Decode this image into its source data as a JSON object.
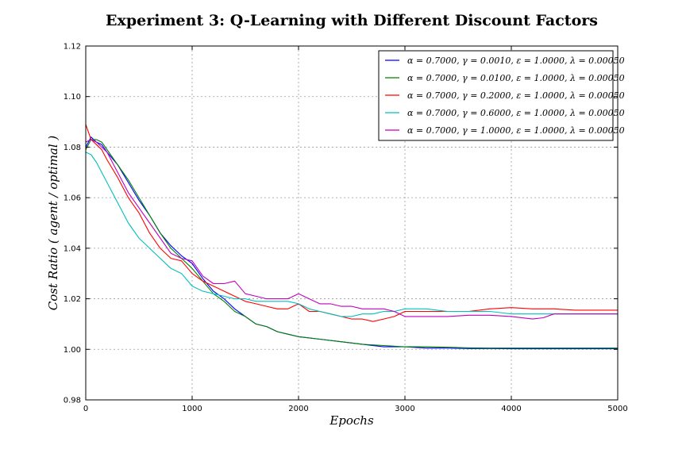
{
  "chart_data": {
    "type": "line",
    "title": "Experiment 3: Q-Learning with Different Discount Factors",
    "xlabel": "Epochs",
    "ylabel": "Cost Ratio ( agent / optimal )",
    "xlim": [
      0,
      5000
    ],
    "ylim": [
      0.98,
      1.12
    ],
    "xticks": [
      "0",
      "1000",
      "2000",
      "3000",
      "4000",
      "5000"
    ],
    "yticks": [
      "0.98",
      "1.00",
      "1.02",
      "1.04",
      "1.06",
      "1.08",
      "1.10",
      "1.12"
    ],
    "grid": true,
    "legend_position": "top-right",
    "series": [
      {
        "name": "α = 0.7000, γ = 0.0010, ε = 1.0000, λ = 0.00050",
        "color": "#0000ff",
        "x": [
          0,
          50,
          100,
          150,
          200,
          300,
          400,
          500,
          600,
          700,
          800,
          900,
          1000,
          1100,
          1200,
          1300,
          1400,
          1500,
          1600,
          1700,
          1800,
          1900,
          2000,
          2200,
          2400,
          2600,
          2800,
          3000,
          3200,
          3400,
          3600,
          3800,
          4000,
          4500,
          5000
        ],
        "y": [
          1.08,
          1.084,
          1.082,
          1.081,
          1.078,
          1.073,
          1.066,
          1.059,
          1.053,
          1.046,
          1.041,
          1.037,
          1.034,
          1.028,
          1.023,
          1.02,
          1.016,
          1.013,
          1.01,
          1.009,
          1.007,
          1.006,
          1.005,
          1.004,
          1.003,
          1.002,
          1.001,
          1.001,
          1.0005,
          1.0005,
          1.0003,
          1.0003,
          1.0002,
          1.0002,
          1.0002
        ]
      },
      {
        "name": "α = 0.7000, γ = 0.0100, ε = 1.0000, λ = 0.00050",
        "color": "#008000",
        "x": [
          0,
          50,
          100,
          150,
          200,
          300,
          400,
          500,
          600,
          700,
          800,
          900,
          1000,
          1100,
          1200,
          1300,
          1400,
          1500,
          1600,
          1700,
          1800,
          1900,
          2000,
          2200,
          2400,
          2600,
          2800,
          3000,
          3200,
          3400,
          3600,
          3800,
          4000,
          4500,
          5000
        ],
        "y": [
          1.079,
          1.083,
          1.083,
          1.082,
          1.079,
          1.073,
          1.067,
          1.06,
          1.053,
          1.046,
          1.04,
          1.036,
          1.032,
          1.027,
          1.022,
          1.019,
          1.015,
          1.013,
          1.01,
          1.009,
          1.007,
          1.006,
          1.005,
          1.004,
          1.003,
          1.002,
          1.0015,
          1.001,
          1.001,
          1.0008,
          1.0006,
          1.0005,
          1.0005,
          1.0005,
          1.0005
        ]
      },
      {
        "name": "α = 0.7000, γ = 0.2000, ε = 1.0000, λ = 0.00050",
        "color": "#ff0000",
        "x": [
          0,
          50,
          100,
          150,
          200,
          300,
          400,
          500,
          600,
          700,
          800,
          900,
          1000,
          1100,
          1200,
          1300,
          1400,
          1500,
          1600,
          1700,
          1800,
          1900,
          2000,
          2100,
          2200,
          2300,
          2400,
          2500,
          2600,
          2700,
          2800,
          2900,
          3000,
          3200,
          3400,
          3600,
          3800,
          4000,
          4200,
          4400,
          4600,
          4800,
          5000
        ],
        "y": [
          1.089,
          1.083,
          1.081,
          1.079,
          1.075,
          1.068,
          1.06,
          1.054,
          1.046,
          1.04,
          1.036,
          1.035,
          1.03,
          1.027,
          1.025,
          1.023,
          1.021,
          1.019,
          1.018,
          1.017,
          1.016,
          1.016,
          1.018,
          1.015,
          1.015,
          1.014,
          1.013,
          1.012,
          1.012,
          1.011,
          1.012,
          1.013,
          1.015,
          1.015,
          1.015,
          1.015,
          1.016,
          1.0165,
          1.016,
          1.016,
          1.0155,
          1.0155,
          1.0155
        ]
      },
      {
        "name": "α = 0.7000, γ = 0.6000, ε = 1.0000, λ = 0.00050",
        "color": "#00bfbf",
        "x": [
          0,
          50,
          100,
          150,
          200,
          300,
          400,
          500,
          600,
          700,
          800,
          900,
          1000,
          1100,
          1200,
          1300,
          1400,
          1500,
          1600,
          1700,
          1800,
          1900,
          2000,
          2100,
          2200,
          2300,
          2400,
          2500,
          2600,
          2700,
          2800,
          2900,
          3000,
          3200,
          3400,
          3600,
          3800,
          4000,
          4200,
          4400,
          4600,
          4800,
          5000
        ],
        "y": [
          1.078,
          1.077,
          1.074,
          1.07,
          1.066,
          1.058,
          1.05,
          1.044,
          1.04,
          1.036,
          1.032,
          1.03,
          1.025,
          1.023,
          1.022,
          1.021,
          1.02,
          1.02,
          1.019,
          1.019,
          1.019,
          1.019,
          1.018,
          1.016,
          1.015,
          1.014,
          1.013,
          1.013,
          1.014,
          1.014,
          1.015,
          1.015,
          1.016,
          1.016,
          1.015,
          1.015,
          1.015,
          1.014,
          1.014,
          1.014,
          1.014,
          1.014,
          1.014
        ]
      },
      {
        "name": "α = 0.7000, γ = 1.0000, ε = 1.0000, λ = 0.00050",
        "color": "#bf00bf",
        "x": [
          0,
          50,
          100,
          150,
          200,
          300,
          400,
          500,
          600,
          700,
          800,
          900,
          1000,
          1100,
          1200,
          1300,
          1400,
          1500,
          1600,
          1700,
          1800,
          1900,
          2000,
          2100,
          2200,
          2300,
          2400,
          2500,
          2600,
          2700,
          2800,
          2900,
          3000,
          3200,
          3400,
          3600,
          3800,
          4000,
          4200,
          4300,
          4400,
          4600,
          4800,
          5000
        ],
        "y": [
          1.082,
          1.083,
          1.082,
          1.08,
          1.078,
          1.07,
          1.062,
          1.056,
          1.05,
          1.044,
          1.038,
          1.036,
          1.035,
          1.029,
          1.026,
          1.026,
          1.027,
          1.022,
          1.021,
          1.02,
          1.02,
          1.02,
          1.022,
          1.02,
          1.018,
          1.018,
          1.017,
          1.017,
          1.016,
          1.016,
          1.016,
          1.015,
          1.013,
          1.013,
          1.013,
          1.0135,
          1.0135,
          1.013,
          1.012,
          1.0125,
          1.014,
          1.014,
          1.014,
          1.014
        ]
      }
    ]
  }
}
